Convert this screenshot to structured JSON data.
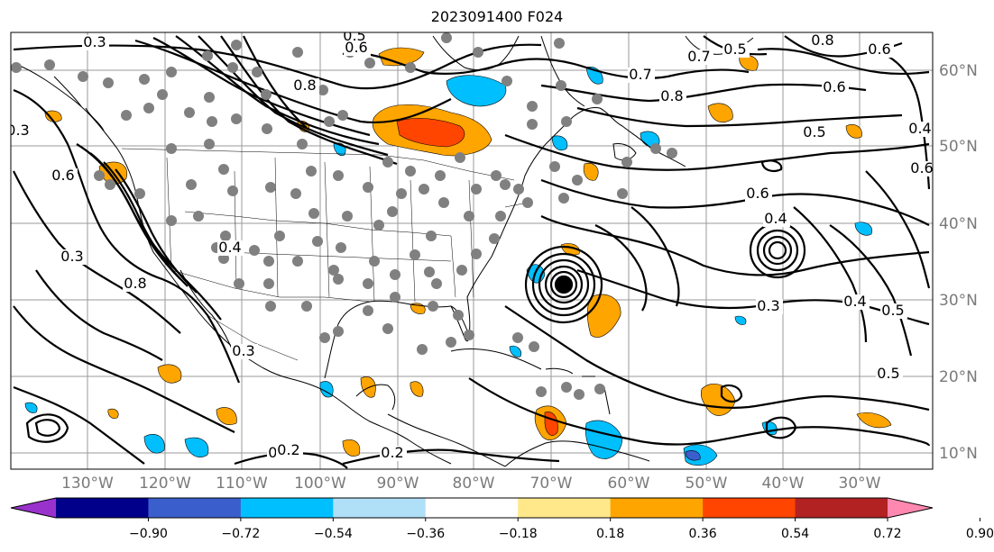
{
  "title": "2023091400 F024",
  "map": {
    "latitude_labels": [
      "60°N",
      "50°N",
      "40°N",
      "30°N",
      "20°N",
      "10°N"
    ],
    "longitude_labels": [
      "130°W",
      "120°W",
      "110°W",
      "100°W",
      "90°W",
      "80°W",
      "70°W",
      "60°W",
      "50°W",
      "40°W",
      "30°W"
    ],
    "contour_labels": [
      "0.3",
      "0.5",
      "0.6",
      "0.8",
      "0.7",
      "0.8",
      "0.6",
      "0.5",
      "0.4",
      "0.6",
      "0.7",
      "0.5",
      "0.6",
      "0.8",
      "0.4",
      "0.6",
      "0.3",
      "0.4",
      "0.5",
      "0.3",
      "0.4",
      "0.2",
      "0.8",
      "0.6",
      "0.3",
      "0.3",
      "0.2",
      "0.2",
      "0.5"
    ]
  },
  "colorbar": {
    "tick_labels": [
      "−0.90",
      "−0.72",
      "−0.54",
      "−0.36",
      "−0.18",
      "0.18",
      "0.36",
      "0.54",
      "0.72",
      "0.90"
    ],
    "colors": [
      "#9932cc",
      "#00008b",
      "#3a5fcd",
      "#00bfff",
      "#b0e0f8",
      "#ffffff",
      "#ffe88a",
      "#ffa500",
      "#ff4500",
      "#b22222",
      "#ff88b0"
    ]
  }
}
